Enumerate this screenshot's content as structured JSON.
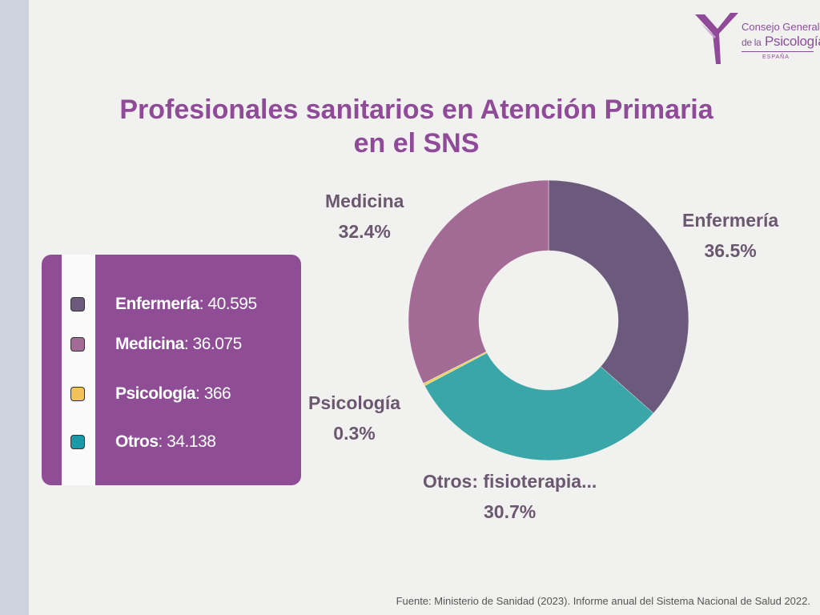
{
  "title": {
    "line1": "Profesionales sanitarios en Atención Primaria",
    "line2": "en el SNS"
  },
  "logo": {
    "line1": "Consejo General",
    "line2_prefix": "de la",
    "line2_main": "Psicología",
    "line3": "ESPAÑA"
  },
  "legend": [
    {
      "name": "Enfermería",
      "value": ": 40.595",
      "color": "#6b5a7b"
    },
    {
      "name": "Medicina",
      "value": ": 36.075",
      "color": "#a46a96"
    },
    {
      "name": "Psicología",
      "value": ": 366",
      "color": "#f2c15a"
    },
    {
      "name": "Otros",
      "value": ": 34.138",
      "color": "#1a9aa9"
    }
  ],
  "chart_data": {
    "type": "pie",
    "donut": true,
    "title": "Profesionales sanitarios en Atención Primaria en el SNS",
    "slices": [
      {
        "label": "Enfermería",
        "value": 36.5,
        "display": "36.5%",
        "count": 40595,
        "color": "#6b5a7b"
      },
      {
        "label": "Otros: fisioterapia...",
        "value": 30.7,
        "display": "30.7%",
        "count": 34138,
        "color": "#3aa6a8"
      },
      {
        "label": "Psicología",
        "value": 0.3,
        "display": "0.3%",
        "count": 366,
        "color": "#e8d35a"
      },
      {
        "label": "Medicina",
        "value": 32.4,
        "display": "32.4%",
        "count": 36075,
        "color": "#a46a96"
      }
    ],
    "start": "12 o'clock",
    "direction": "clockwise"
  },
  "source": "Fuente: Ministerio de Sanidad (2023). Informe anual del Sistema Nacional de Salud 2022."
}
